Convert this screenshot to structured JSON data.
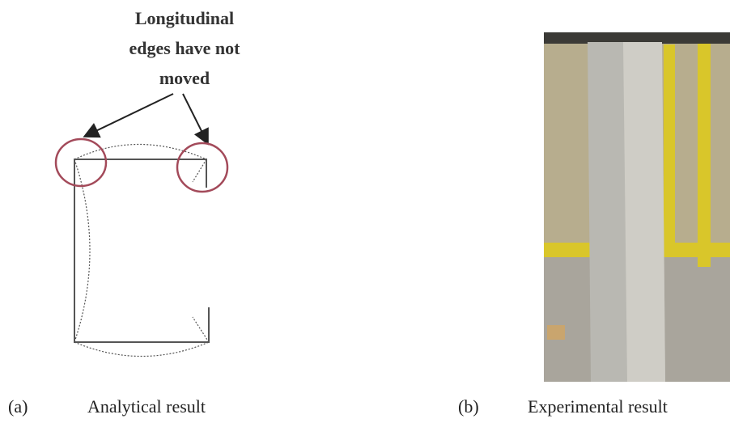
{
  "annotation": {
    "lines": [
      "Longitudinal",
      "edges have not",
      "moved"
    ]
  },
  "captions": [
    {
      "label": "(a)",
      "text": "Analytical result"
    },
    {
      "label": "(b)",
      "text": "Experimental result"
    }
  ]
}
